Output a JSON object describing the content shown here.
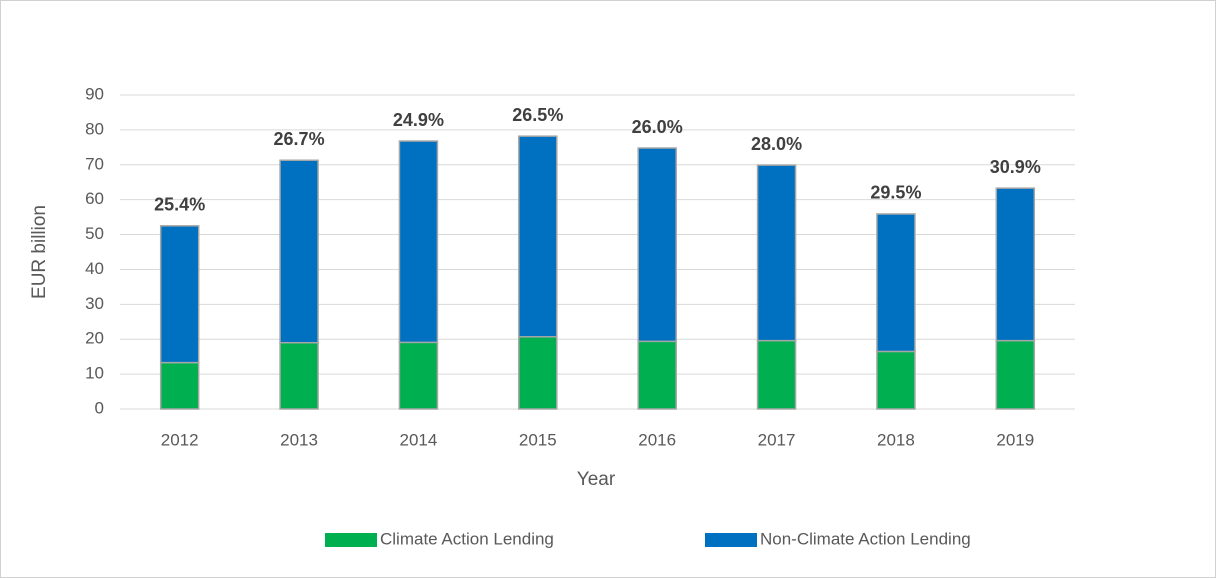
{
  "chart_data": {
    "type": "stacked_bar",
    "xlabel": "Year",
    "ylabel": "EUR billion",
    "categories": [
      "2012",
      "2013",
      "2014",
      "2015",
      "2016",
      "2017",
      "2018",
      "2019"
    ],
    "series": [
      {
        "name": "Climate Action Lending",
        "color": "#00b050",
        "values": [
          13.3,
          19.0,
          19.1,
          20.7,
          19.4,
          19.6,
          16.5,
          19.6
        ]
      },
      {
        "name": "Non-Climate Action Lending",
        "color": "#0070c0",
        "values": [
          39.2,
          52.3,
          57.7,
          57.5,
          55.4,
          50.3,
          39.4,
          43.7
        ]
      }
    ],
    "annotations": [
      "25.4%",
      "26.7%",
      "24.9%",
      "26.5%",
      "26.0%",
      "28.0%",
      "29.5%",
      "30.9%"
    ],
    "ylim": [
      0,
      90
    ],
    "yticks": [
      0,
      10,
      20,
      30,
      40,
      50,
      60,
      70,
      80,
      90
    ],
    "grid": true,
    "legend": "bottom"
  }
}
